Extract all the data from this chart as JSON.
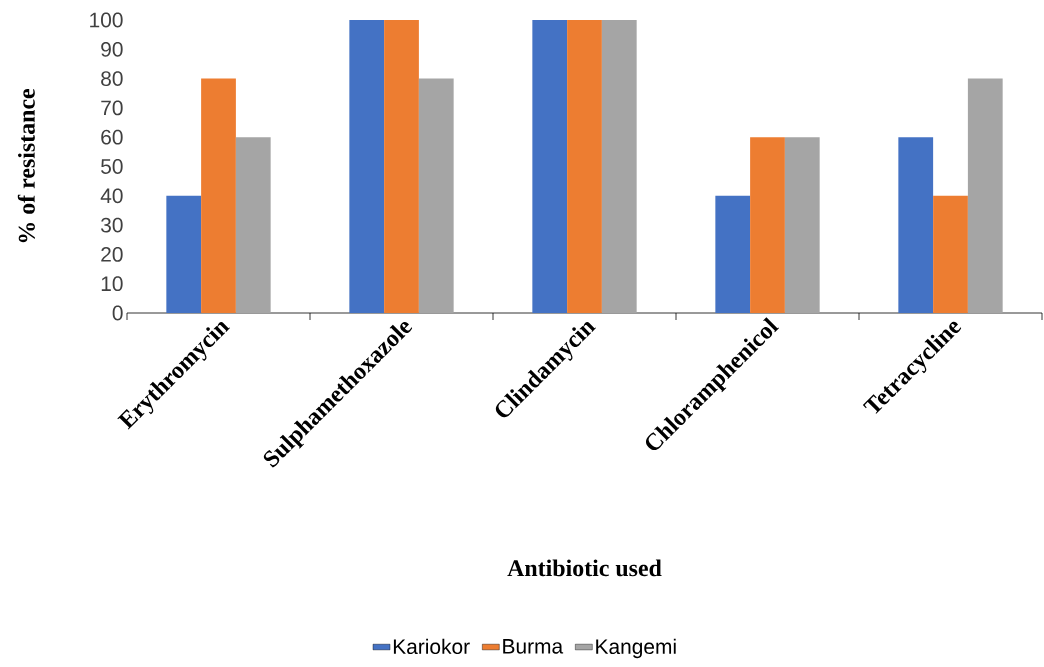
{
  "chart_data": {
    "type": "bar",
    "xlabel": "Antibiotic used",
    "ylabel": "% of resistance",
    "categories": [
      "Erythromycin",
      "Sulphamethoxazole",
      "Clindamycin",
      "Chloramphenicol",
      "Tetracycline"
    ],
    "series": [
      {
        "name": "Kariokor",
        "color": "#4472c4",
        "values": [
          40,
          100,
          100,
          40,
          60
        ]
      },
      {
        "name": "Burma",
        "color": "#ed7d31",
        "values": [
          80,
          100,
          100,
          60,
          40
        ]
      },
      {
        "name": "Kangemi",
        "color": "#a5a5a5",
        "values": [
          60,
          80,
          100,
          60,
          80
        ]
      }
    ],
    "ylim": [
      0,
      100
    ],
    "yticks": [
      0,
      10,
      20,
      30,
      40,
      50,
      60,
      70,
      80,
      90,
      100
    ],
    "grid": false,
    "legend": "bottom"
  }
}
